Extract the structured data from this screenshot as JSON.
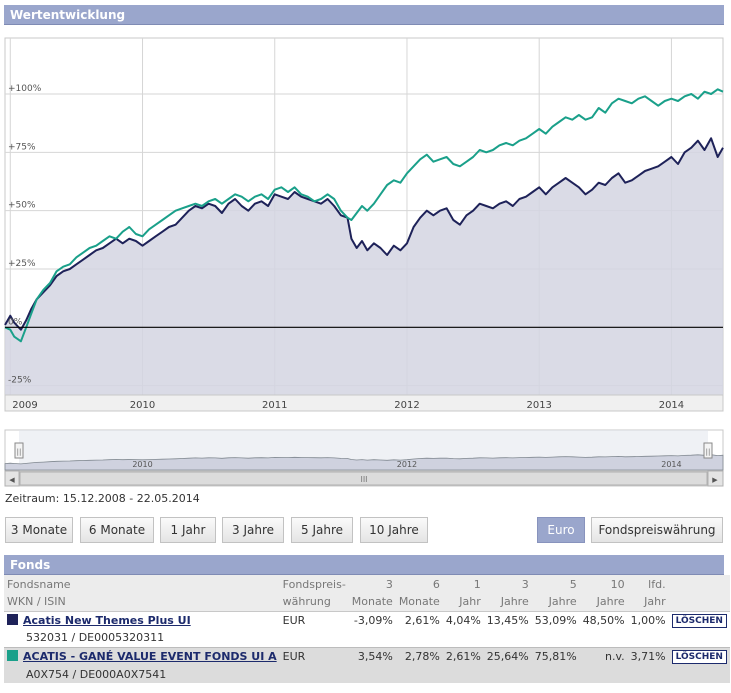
{
  "header": {
    "title": "Wertentwicklung"
  },
  "chart_data": {
    "type": "line",
    "title": "Wertentwicklung",
    "y_tick_labels": [
      "+100%",
      "+75%",
      "+50%",
      "+25%",
      "0%",
      "-25%"
    ],
    "y_ticks": [
      100,
      75,
      50,
      25,
      0,
      -25
    ],
    "ylim": [
      -29,
      124
    ],
    "x_tick_labels": [
      "2009",
      "2010",
      "2011",
      "2012",
      "2013",
      "2014"
    ],
    "x_ticks": [
      2009.0,
      2010.0,
      2011.0,
      2012.0,
      2013.0,
      2014.0
    ],
    "xlim": [
      2008.96,
      2014.39
    ],
    "series": [
      {
        "name": "Acatis New Themes Plus UI",
        "color": "#1e2259",
        "filled": true,
        "x": [
          2008.96,
          2009.0,
          2009.03,
          2009.08,
          2009.12,
          2009.16,
          2009.2,
          2009.25,
          2009.3,
          2009.35,
          2009.4,
          2009.45,
          2009.5,
          2009.55,
          2009.6,
          2009.65,
          2009.7,
          2009.75,
          2009.8,
          2009.85,
          2009.9,
          2009.95,
          2010.0,
          2010.05,
          2010.1,
          2010.15,
          2010.2,
          2010.25,
          2010.3,
          2010.35,
          2010.4,
          2010.45,
          2010.5,
          2010.55,
          2010.6,
          2010.65,
          2010.7,
          2010.75,
          2010.8,
          2010.85,
          2010.9,
          2010.95,
          2011.0,
          2011.05,
          2011.1,
          2011.15,
          2011.2,
          2011.25,
          2011.3,
          2011.35,
          2011.4,
          2011.45,
          2011.5,
          2011.55,
          2011.58,
          2011.62,
          2011.66,
          2011.7,
          2011.75,
          2011.8,
          2011.85,
          2011.9,
          2011.95,
          2012.0,
          2012.05,
          2012.1,
          2012.15,
          2012.2,
          2012.25,
          2012.3,
          2012.35,
          2012.4,
          2012.45,
          2012.5,
          2012.55,
          2012.6,
          2012.65,
          2012.7,
          2012.75,
          2012.8,
          2012.85,
          2012.9,
          2012.95,
          2013.0,
          2013.05,
          2013.1,
          2013.15,
          2013.2,
          2013.25,
          2013.3,
          2013.35,
          2013.4,
          2013.45,
          2013.5,
          2013.55,
          2013.6,
          2013.65,
          2013.7,
          2013.75,
          2013.8,
          2013.85,
          2013.9,
          2013.95,
          2014.0,
          2014.05,
          2014.1,
          2014.15,
          2014.2,
          2014.25,
          2014.3,
          2014.35,
          2014.39
        ],
        "values": [
          1,
          5,
          2,
          -1,
          3,
          8,
          12,
          15,
          18,
          22,
          24,
          25,
          27,
          29,
          31,
          33,
          34,
          36,
          38,
          36,
          38,
          37,
          35,
          37,
          39,
          41,
          43,
          44,
          47,
          50,
          52,
          51,
          53,
          52,
          49,
          53,
          55,
          52,
          50,
          53,
          54,
          52,
          57,
          56,
          55,
          58,
          56,
          55,
          54,
          53,
          55,
          52,
          48,
          47,
          38,
          34,
          37,
          33,
          36,
          34,
          31,
          35,
          33,
          36,
          43,
          47,
          50,
          48,
          50,
          51,
          46,
          44,
          48,
          50,
          53,
          52,
          51,
          53,
          54,
          52,
          55,
          56,
          58,
          60,
          57,
          60,
          62,
          64,
          62,
          60,
          57,
          59,
          62,
          61,
          64,
          66,
          62,
          63,
          65,
          67,
          68,
          69,
          71,
          73,
          70,
          75,
          77,
          80,
          76,
          81,
          73,
          77
        ]
      },
      {
        "name": "ACATIS - GANÉ VALUE EVENT FONDS UI A",
        "color": "#1aa08a",
        "filled": false,
        "x": [
          2008.96,
          2009.0,
          2009.03,
          2009.08,
          2009.12,
          2009.16,
          2009.2,
          2009.25,
          2009.3,
          2009.35,
          2009.4,
          2009.45,
          2009.5,
          2009.55,
          2009.6,
          2009.65,
          2009.7,
          2009.75,
          2009.8,
          2009.85,
          2009.9,
          2009.95,
          2010.0,
          2010.05,
          2010.1,
          2010.15,
          2010.2,
          2010.25,
          2010.3,
          2010.35,
          2010.4,
          2010.45,
          2010.5,
          2010.55,
          2010.6,
          2010.65,
          2010.7,
          2010.75,
          2010.8,
          2010.85,
          2010.9,
          2010.95,
          2011.0,
          2011.05,
          2011.1,
          2011.15,
          2011.2,
          2011.25,
          2011.3,
          2011.35,
          2011.4,
          2011.45,
          2011.5,
          2011.55,
          2011.58,
          2011.62,
          2011.66,
          2011.7,
          2011.75,
          2011.8,
          2011.85,
          2011.9,
          2011.95,
          2012.0,
          2012.05,
          2012.1,
          2012.15,
          2012.2,
          2012.25,
          2012.3,
          2012.35,
          2012.4,
          2012.45,
          2012.5,
          2012.55,
          2012.6,
          2012.65,
          2012.7,
          2012.75,
          2012.8,
          2012.85,
          2012.9,
          2012.95,
          2013.0,
          2013.05,
          2013.1,
          2013.15,
          2013.2,
          2013.25,
          2013.3,
          2013.35,
          2013.4,
          2013.45,
          2013.5,
          2013.55,
          2013.6,
          2013.65,
          2013.7,
          2013.75,
          2013.8,
          2013.85,
          2013.9,
          2013.95,
          2014.0,
          2014.05,
          2014.1,
          2014.15,
          2014.2,
          2014.25,
          2014.3,
          2014.35,
          2014.39
        ],
        "values": [
          0,
          -1,
          -4,
          -6,
          0,
          6,
          12,
          16,
          19,
          24,
          26,
          27,
          30,
          32,
          34,
          35,
          37,
          39,
          38,
          41,
          43,
          40,
          39,
          42,
          44,
          46,
          48,
          50,
          51,
          52,
          53,
          52,
          54,
          55,
          53,
          55,
          57,
          56,
          54,
          56,
          57,
          55,
          59,
          60,
          58,
          60,
          57,
          56,
          54,
          55,
          57,
          55,
          50,
          47,
          46,
          49,
          52,
          50,
          53,
          57,
          61,
          63,
          62,
          66,
          69,
          72,
          74,
          71,
          72,
          73,
          70,
          69,
          71,
          73,
          76,
          75,
          76,
          78,
          79,
          78,
          80,
          81,
          83,
          85,
          83,
          86,
          88,
          90,
          89,
          91,
          89,
          90,
          94,
          92,
          96,
          98,
          97,
          96,
          98,
          99,
          97,
          95,
          97,
          98,
          97,
          99,
          100,
          98,
          101,
          100,
          102,
          101
        ]
      }
    ]
  },
  "navigator": {
    "tick_labels": [
      "2010",
      "2012",
      "2014"
    ],
    "scroll_left": "◀",
    "scroll_right": "▶",
    "scroll_grip": "III",
    "handle_grip": "||"
  },
  "zeitraum": "Zeitraum: 15.12.2008 - 22.05.2014",
  "period_buttons": [
    "3 Monate",
    "6 Monate",
    "1 Jahr",
    "3 Jahre",
    "5 Jahre",
    "10 Jahre"
  ],
  "currency_buttons": {
    "euro": "Euro",
    "fonds": "Fondspreiswährung"
  },
  "funds_section": {
    "title": "Fonds",
    "columns_row1": [
      "Fondsname",
      "Fondspreis-",
      "3",
      "6",
      "1",
      "3",
      "5",
      "10",
      "lfd."
    ],
    "columns_row2": [
      "WKN / ISIN",
      "währung",
      "Monate",
      "Monate",
      "Jahr",
      "Jahre",
      "Jahre",
      "Jahre",
      "Jahr"
    ],
    "rows": [
      {
        "color": "#1e2259",
        "name": "Acatis New Themes Plus UI",
        "wkn_isin": "532031 / DE0005320311",
        "currency": "EUR",
        "m3": "-3,09%",
        "m6": "2,61%",
        "y1": "4,04%",
        "y3": "13,45%",
        "y5": "53,09%",
        "y10": "48,50%",
        "ytd": "1,00%",
        "delete_label": "LÖSCHEN"
      },
      {
        "color": "#1aa08a",
        "name": "ACATIS - GANÉ VALUE EVENT FONDS UI A",
        "wkn_isin": "A0X754 / DE000A0X7541",
        "currency": "EUR",
        "m3": "3,54%",
        "m6": "2,78%",
        "y1": "2,61%",
        "y3": "25,64%",
        "y5": "75,81%",
        "y10": "n.v.",
        "ytd": "3,71%",
        "delete_label": "LÖSCHEN"
      }
    ]
  }
}
